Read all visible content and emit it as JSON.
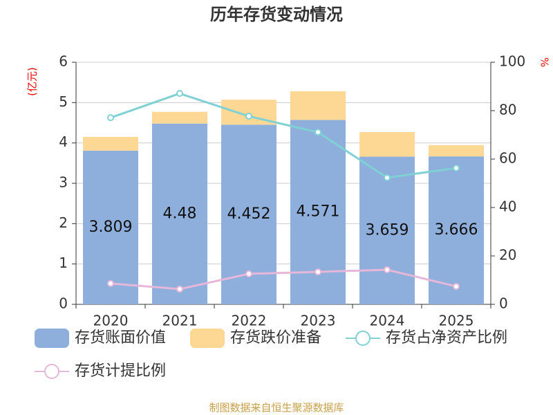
{
  "chart_data": {
    "type": "bar",
    "title": "历年存货变动情况",
    "y_label": "(亿元)",
    "y2_label": "%",
    "source": "制图数据来自恒生聚源数据库",
    "categories": [
      "2020",
      "2021",
      "2022",
      "2023",
      "2024",
      "2025"
    ],
    "series": [
      {
        "name": "存货账面价值",
        "type": "bar",
        "color": "#8eaedb",
        "values": [
          3.809,
          4.48,
          4.452,
          4.571,
          3.659,
          3.666
        ],
        "show_labels": true
      },
      {
        "name": "存货跌价准备",
        "type": "bar",
        "color": "#fdd794",
        "values": [
          0.34,
          0.29,
          0.62,
          0.71,
          0.61,
          0.28
        ]
      },
      {
        "name": "存货占净资产比例",
        "type": "line",
        "axis": "y2",
        "color": "#7fd1d4",
        "values": [
          77.1,
          87.1,
          77.7,
          71.1,
          52.3,
          56.3
        ]
      },
      {
        "name": "存货计提比例",
        "type": "line",
        "axis": "y2",
        "color": "#e7b7d9",
        "values": [
          8.6,
          6.3,
          12.6,
          13.4,
          14.3,
          7.4
        ]
      }
    ],
    "stacked": true,
    "ylim": [
      0,
      6
    ],
    "yticks": [
      0,
      1,
      2,
      3,
      4,
      5,
      6
    ],
    "y2lim": [
      0,
      100
    ],
    "y2ticks": [
      0,
      20,
      40,
      60,
      80,
      100
    ],
    "grid": true
  }
}
